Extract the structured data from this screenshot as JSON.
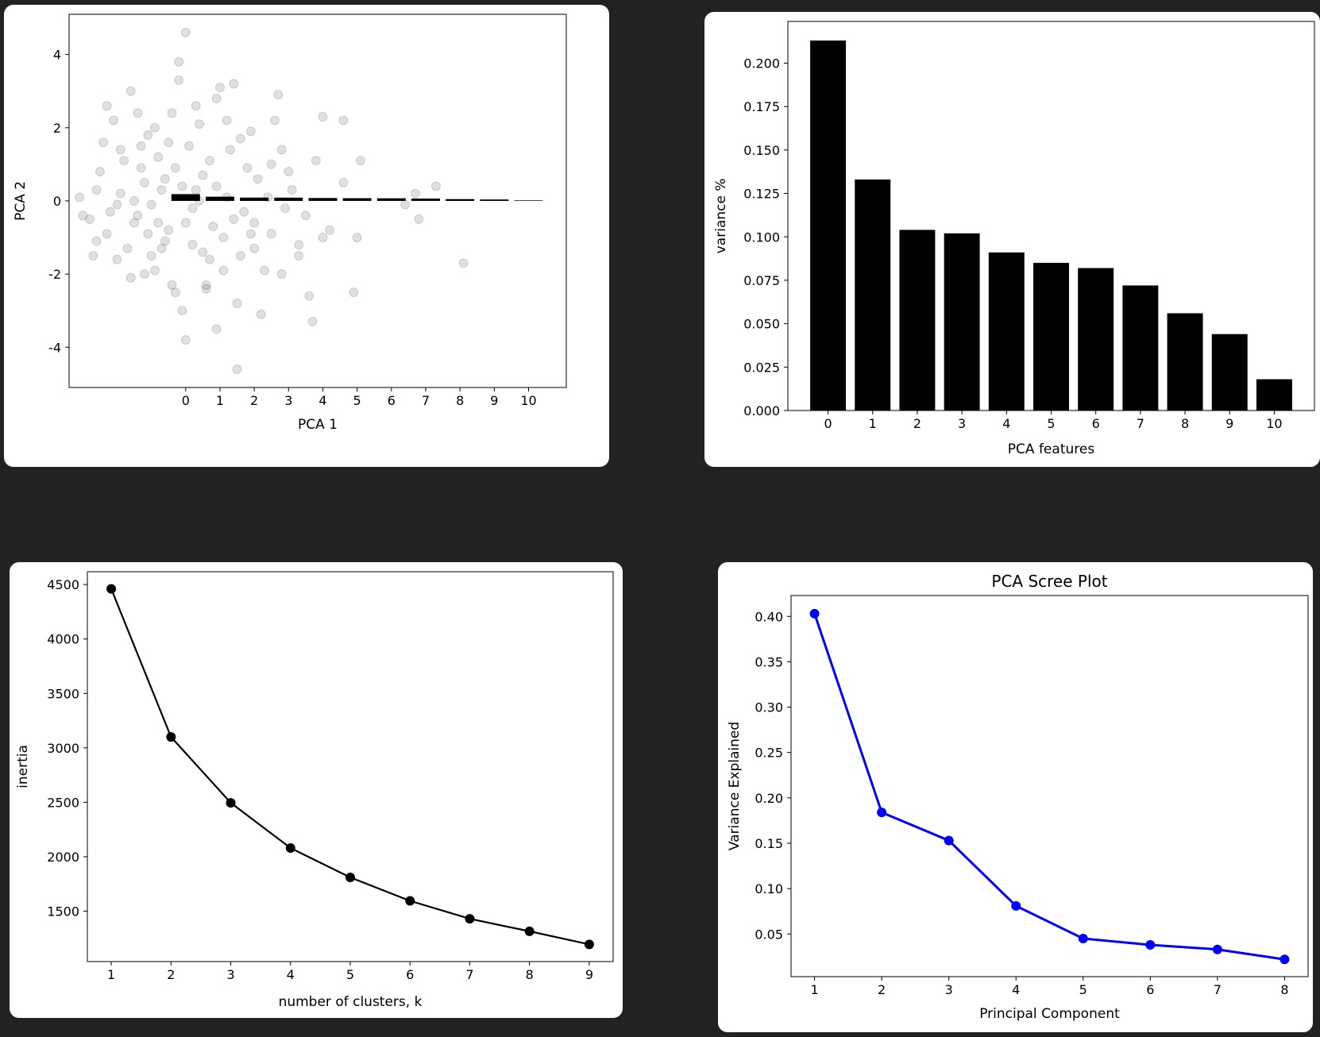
{
  "chart_data": [
    {
      "type": "scatter",
      "xlabel": "PCA 1",
      "ylabel": "PCA 2",
      "xticks": [
        0,
        1,
        2,
        3,
        4,
        5,
        6,
        7,
        8,
        9,
        10
      ],
      "yticks": [
        -4,
        -2,
        0,
        2,
        4
      ],
      "xlim": [
        -3.4,
        11.1
      ],
      "ylim": [
        -5.1,
        5.1
      ],
      "point_color": "#000000",
      "point_alpha": 0.12,
      "bar_overlay": {
        "categories": [
          0,
          1,
          2,
          3,
          4,
          5,
          6,
          7,
          8,
          9,
          10
        ],
        "values": [
          0.213,
          0.133,
          0.104,
          0.102,
          0.091,
          0.085,
          0.082,
          0.072,
          0.056,
          0.044,
          0.018
        ]
      },
      "points": [
        [
          -1.2,
          0.5
        ],
        [
          -0.8,
          1.2
        ],
        [
          -1.5,
          -0.6
        ],
        [
          -0.3,
          0.9
        ],
        [
          -1.9,
          0.2
        ],
        [
          -0.6,
          -1.1
        ],
        [
          -2.2,
          -0.3
        ],
        [
          -1.1,
          1.8
        ],
        [
          0.4,
          2.1
        ],
        [
          -0.9,
          -1.9
        ],
        [
          0.8,
          -0.7
        ],
        [
          1.3,
          1.4
        ],
        [
          -1.7,
          -1.3
        ],
        [
          0.2,
          -0.2
        ],
        [
          -2.5,
          0.8
        ],
        [
          1.6,
          -1.5
        ],
        [
          2.1,
          0.6
        ],
        [
          -0.4,
          -2.3
        ],
        [
          0.9,
          2.8
        ],
        [
          -1.4,
          2.4
        ],
        [
          2.5,
          -0.9
        ],
        [
          -2.8,
          -0.5
        ],
        [
          1.9,
          1.9
        ],
        [
          -0.2,
          3.3
        ],
        [
          0.6,
          -2.4
        ],
        [
          3.1,
          0.3
        ],
        [
          -1.0,
          -0.1
        ],
        [
          2.8,
          1.4
        ],
        [
          -2.4,
          1.6
        ],
        [
          1.2,
          0.1
        ],
        [
          -0.7,
          0.3
        ],
        [
          0.1,
          1.5
        ],
        [
          -1.6,
          -2.1
        ],
        [
          2.3,
          -1.9
        ],
        [
          3.5,
          -0.4
        ],
        [
          -2.0,
          -1.6
        ],
        [
          0.5,
          0.7
        ],
        [
          1.7,
          -0.3
        ],
        [
          -3.1,
          0.1
        ],
        [
          -0.5,
          -0.8
        ],
        [
          1.0,
          3.1
        ],
        [
          3.8,
          1.1
        ],
        [
          -1.3,
          0.9
        ],
        [
          0.7,
          -1.6
        ],
        [
          2.6,
          2.2
        ],
        [
          -2.6,
          -1.1
        ],
        [
          4.2,
          -0.8
        ],
        [
          -0.1,
          -3.0
        ],
        [
          1.5,
          -2.8
        ],
        [
          3.3,
          -1.5
        ],
        [
          -1.8,
          1.1
        ],
        [
          0.3,
          2.6
        ],
        [
          2.0,
          -0.6
        ],
        [
          -0.9,
          2.0
        ],
        [
          4.6,
          0.5
        ],
        [
          5.1,
          1.1
        ],
        [
          -2.1,
          2.2
        ],
        [
          0.0,
          4.6
        ],
        [
          -0.2,
          3.8
        ],
        [
          1.4,
          3.2
        ],
        [
          3.6,
          -2.6
        ],
        [
          2.2,
          -3.1
        ],
        [
          0.9,
          -3.5
        ],
        [
          0.0,
          -3.8
        ],
        [
          1.5,
          -4.6
        ],
        [
          3.7,
          -3.3
        ],
        [
          4.9,
          -2.5
        ],
        [
          8.1,
          -1.7
        ],
        [
          6.8,
          -0.5
        ],
        [
          6.4,
          -0.1
        ],
        [
          7.3,
          0.4
        ],
        [
          6.7,
          0.2
        ],
        [
          5.0,
          -1.0
        ],
        [
          4.0,
          2.3
        ],
        [
          4.6,
          2.2
        ],
        [
          2.7,
          2.9
        ],
        [
          -1.6,
          3.0
        ],
        [
          -2.3,
          2.6
        ],
        [
          -3.0,
          -0.4
        ],
        [
          -2.7,
          -1.5
        ],
        [
          -1.2,
          -2.0
        ],
        [
          -0.3,
          -2.5
        ],
        [
          0.6,
          -2.3
        ],
        [
          1.1,
          -1.9
        ],
        [
          2.8,
          -2.0
        ],
        [
          3.3,
          -1.2
        ],
        [
          4.0,
          -1.0
        ],
        [
          0.4,
          0.0
        ],
        [
          -0.6,
          0.6
        ],
        [
          1.8,
          0.9
        ],
        [
          -1.4,
          -0.4
        ],
        [
          -0.5,
          1.6
        ],
        [
          1.1,
          -1.0
        ],
        [
          2.4,
          0.1
        ],
        [
          -2.3,
          -0.9
        ],
        [
          0.2,
          -1.2
        ],
        [
          -1.0,
          -1.5
        ],
        [
          1.6,
          1.7
        ],
        [
          -0.8,
          -0.6
        ],
        [
          0.9,
          0.4
        ],
        [
          -1.9,
          1.4
        ],
        [
          2.9,
          -0.2
        ],
        [
          -0.1,
          0.4
        ],
        [
          1.4,
          -0.5
        ],
        [
          -2.6,
          0.3
        ],
        [
          0.7,
          1.1
        ],
        [
          -1.1,
          -0.9
        ],
        [
          2.0,
          -1.3
        ],
        [
          -0.4,
          2.4
        ],
        [
          3.0,
          0.8
        ],
        [
          -1.5,
          0.0
        ],
        [
          0.0,
          -0.6
        ],
        [
          1.2,
          2.2
        ],
        [
          -2.0,
          -0.1
        ],
        [
          0.5,
          -1.4
        ],
        [
          -0.7,
          -1.3
        ],
        [
          2.5,
          1.0
        ],
        [
          -1.3,
          1.5
        ],
        [
          0.3,
          0.3
        ],
        [
          1.9,
          -0.9
        ]
      ]
    },
    {
      "type": "bar",
      "xlabel": "PCA features",
      "ylabel": "variance %",
      "categories": [
        0,
        1,
        2,
        3,
        4,
        5,
        6,
        7,
        8,
        9,
        10
      ],
      "values": [
        0.213,
        0.133,
        0.104,
        0.102,
        0.091,
        0.085,
        0.082,
        0.072,
        0.056,
        0.044,
        0.018
      ],
      "yticks": [
        "0.000",
        "0.025",
        "0.050",
        "0.075",
        "0.100",
        "0.125",
        "0.150",
        "0.175",
        "0.200"
      ],
      "ylim": [
        0,
        0.224
      ],
      "xlim": [
        -0.9,
        10.9
      ],
      "bar_color": "#000000"
    },
    {
      "type": "line",
      "xlabel": "number of clusters, k",
      "ylabel": "inertia",
      "x": [
        1,
        2,
        3,
        4,
        5,
        6,
        7,
        8,
        9
      ],
      "y": [
        4460,
        3100,
        2495,
        2080,
        1810,
        1595,
        1430,
        1315,
        1195
      ],
      "yticks": [
        1500,
        2000,
        2500,
        3000,
        3500,
        4000,
        4500
      ],
      "ylim": [
        1037,
        4618
      ],
      "xlim": [
        0.6,
        9.4
      ],
      "color": "#000000"
    },
    {
      "type": "line",
      "title": "PCA Scree Plot",
      "xlabel": "Principal Component",
      "ylabel": "Variance Explained",
      "x": [
        1,
        2,
        3,
        4,
        5,
        6,
        7,
        8
      ],
      "y": [
        0.403,
        0.184,
        0.153,
        0.081,
        0.045,
        0.038,
        0.033,
        0.022
      ],
      "yticks": [
        "0.05",
        "0.10",
        "0.15",
        "0.20",
        "0.25",
        "0.30",
        "0.35",
        "0.40"
      ],
      "ylim": [
        0.003,
        0.423
      ],
      "xlim": [
        0.65,
        8.35
      ],
      "color": "#0000ff"
    }
  ]
}
